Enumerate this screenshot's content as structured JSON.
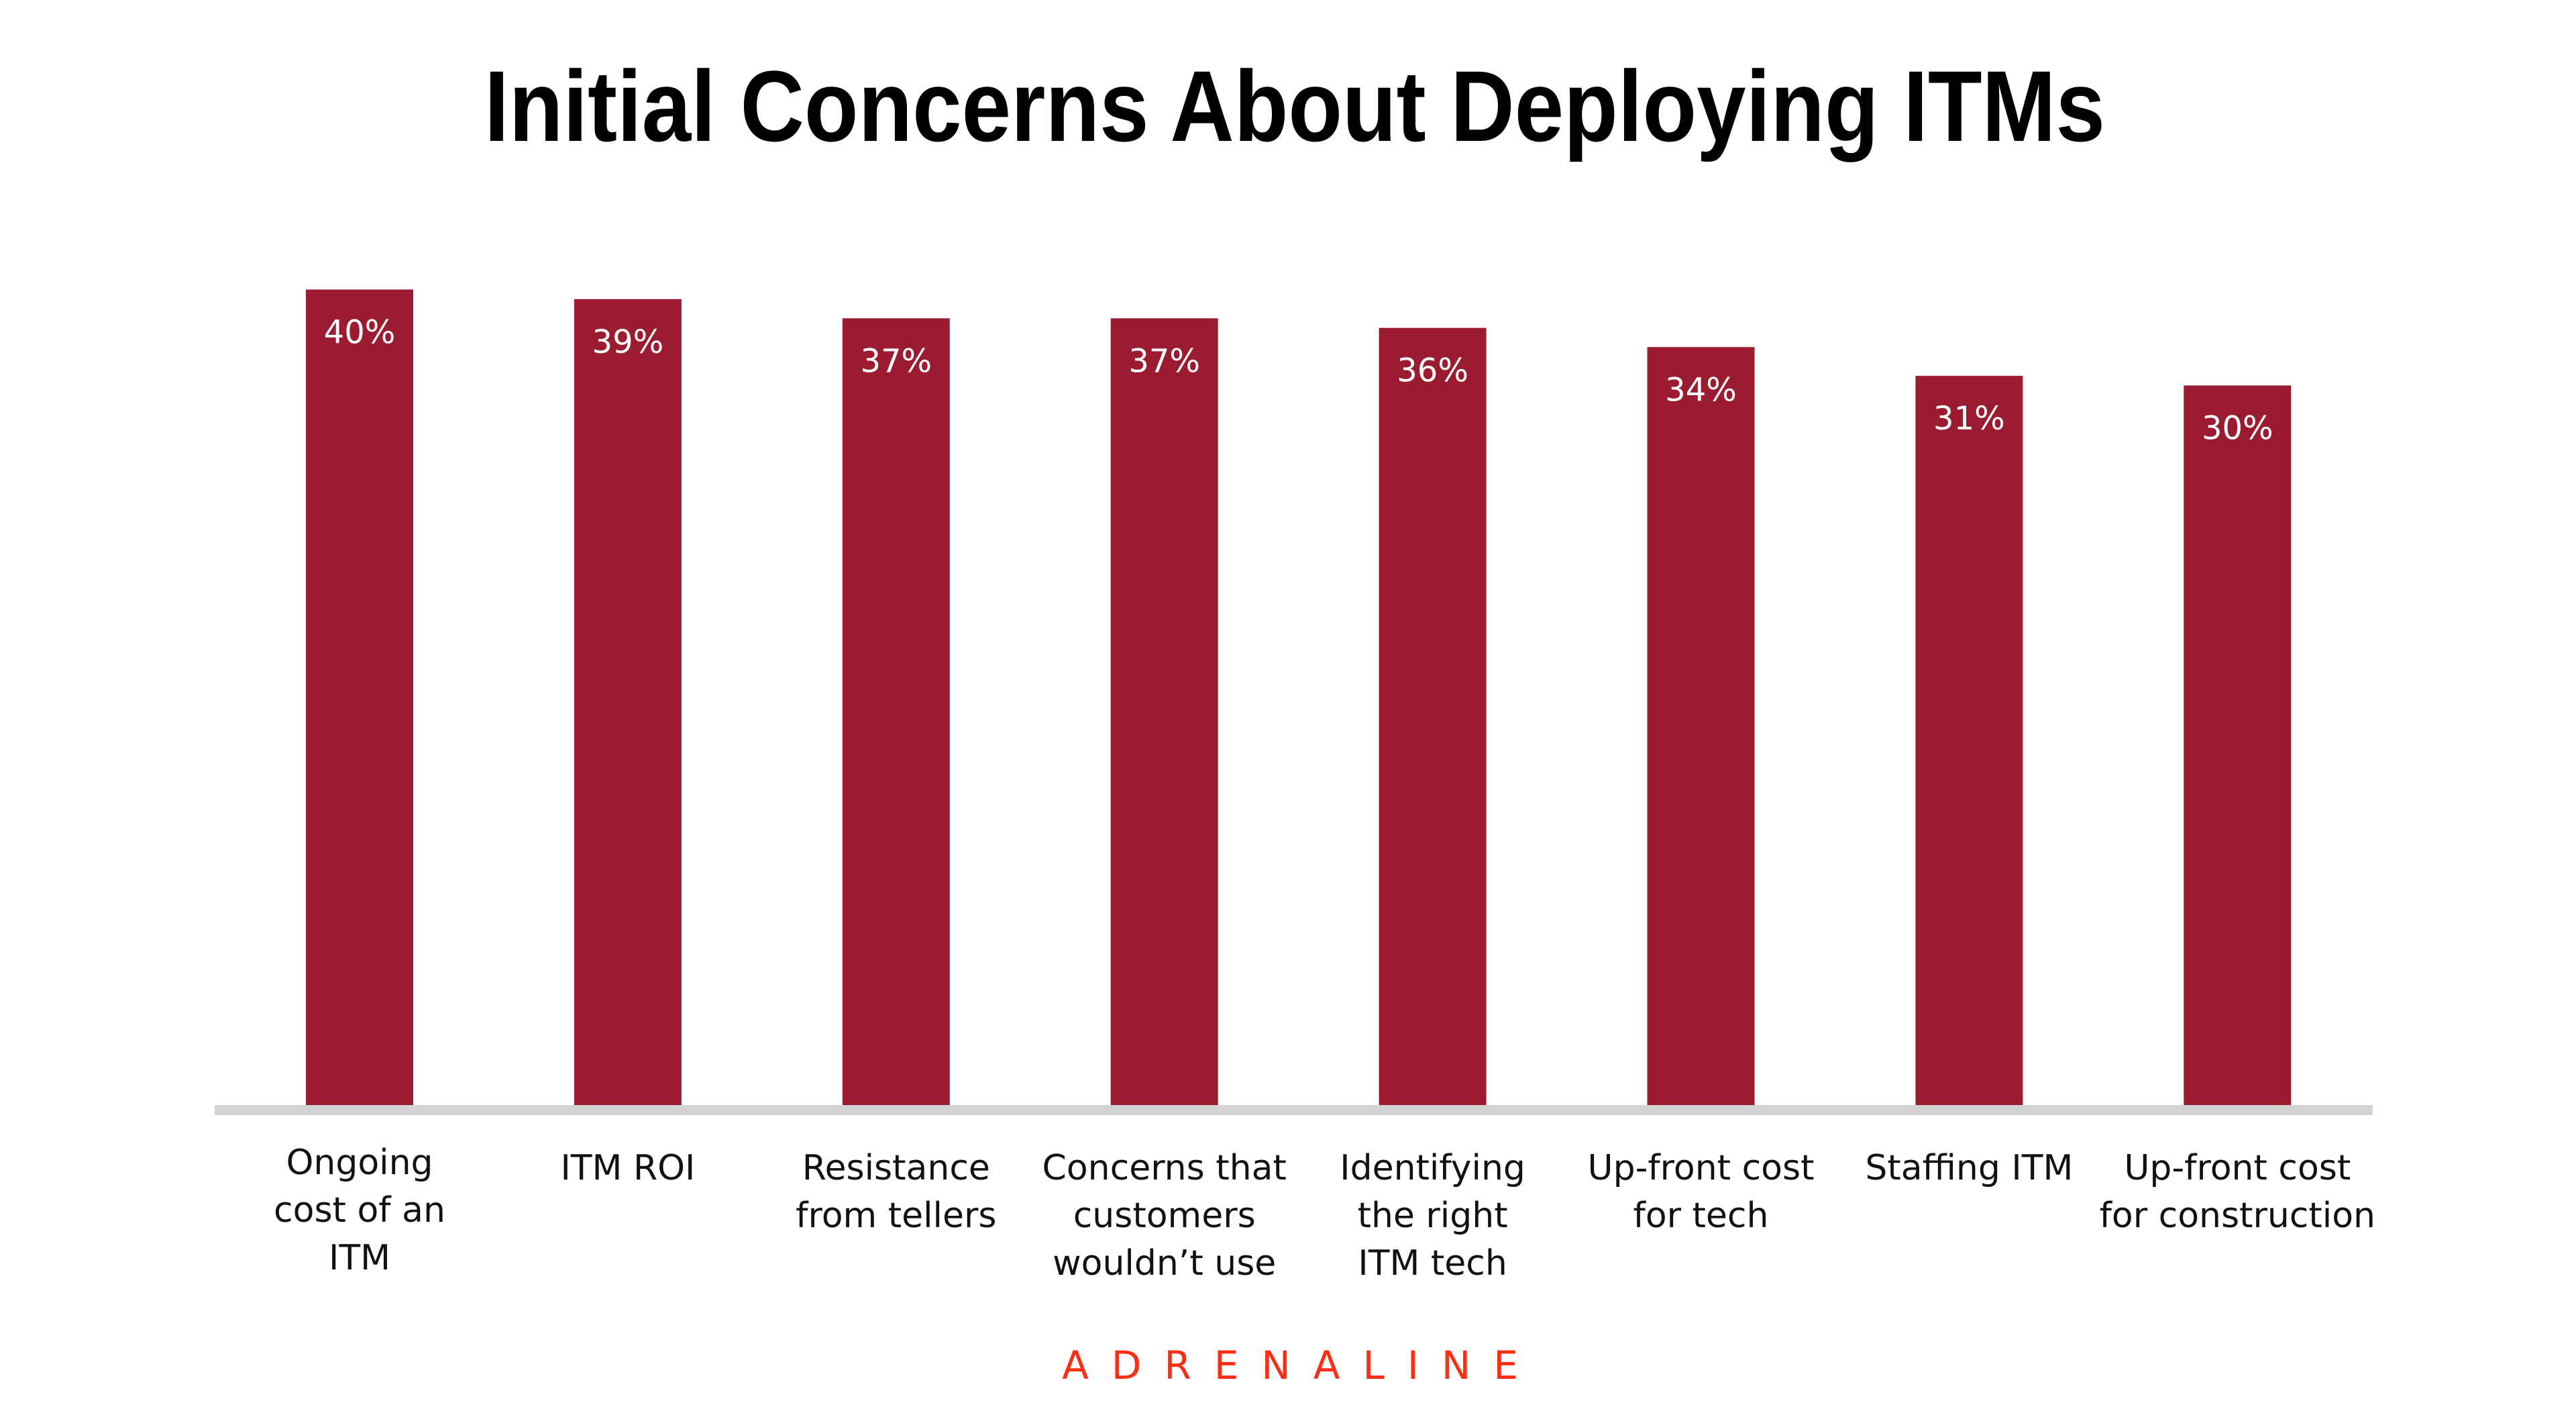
{
  "chart_data": {
    "type": "bar",
    "title": "Initial Concerns About Deploying ITMs",
    "categories": [
      [
        "Ongoing",
        "cost of an",
        "ITM"
      ],
      [
        "ITM ROI"
      ],
      [
        "Resistance",
        "from tellers"
      ],
      [
        "Concerns that",
        "customers",
        "wouldn’t use"
      ],
      [
        "Identifying",
        "the right",
        "ITM tech"
      ],
      [
        "Up-front cost",
        "for tech"
      ],
      [
        "Staffing ITM"
      ],
      [
        "Up-front cost",
        "for construction"
      ]
    ],
    "values": [
      40,
      39,
      37,
      37,
      36,
      34,
      31,
      30
    ],
    "value_labels": [
      "40%",
      "39%",
      "37%",
      "37%",
      "36%",
      "34%",
      "31%",
      "30%"
    ],
    "xlabel": "",
    "ylabel": "",
    "grid": false,
    "colors": {
      "bar": "#9b1b30",
      "axis": "#d1d2d4",
      "value_label": "#ffffff"
    }
  },
  "brand": {
    "logo_text": "ADRENALINE",
    "color": "#ff2d12"
  }
}
